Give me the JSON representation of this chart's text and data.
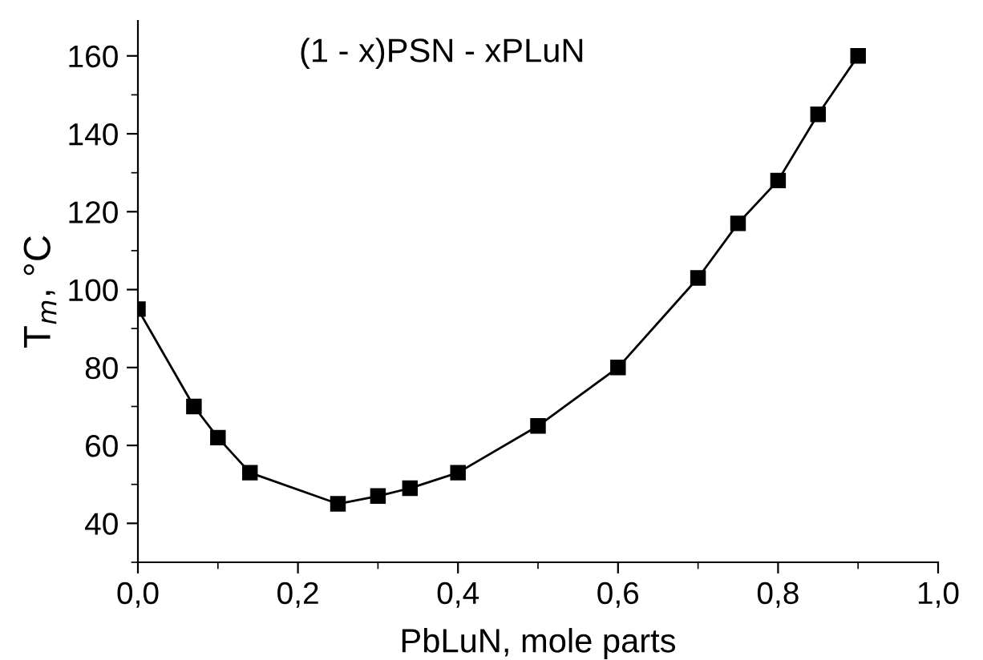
{
  "chart_data": {
    "type": "line",
    "title": "(1 - x)PSN - xPLuN",
    "xlabel": "PbLuN, mole parts",
    "ylabel": "T$_{m}$, °C",
    "x": [
      0,
      0.07,
      0.1,
      0.14,
      0.25,
      0.3,
      0.34,
      0.4,
      0.5,
      0.6,
      0.7,
      0.75,
      0.8,
      0.85,
      0.9
    ],
    "series": [
      {
        "color": "#000000",
        "values": [
          95,
          70,
          62,
          53,
          45,
          47,
          49,
          53,
          65,
          80,
          103,
          117,
          128,
          145,
          160
        ]
      }
    ],
    "marker": "square",
    "line_style": "solid",
    "grid": false,
    "legend": false,
    "xlim": [
      0,
      1.0
    ],
    "ylim": [
      30,
      169
    ],
    "xticks": [
      {
        "value": 0,
        "label": "0,0"
      },
      {
        "value": 0.2,
        "label": "0,2"
      },
      {
        "value": 0.4,
        "label": "0,4"
      },
      {
        "value": 0.6,
        "label": "0,6"
      },
      {
        "value": 0.8,
        "label": "0,8"
      },
      {
        "value": 1.0,
        "label": "1,0"
      }
    ],
    "yticks": [
      40,
      60,
      80,
      100,
      120,
      140,
      160
    ]
  }
}
